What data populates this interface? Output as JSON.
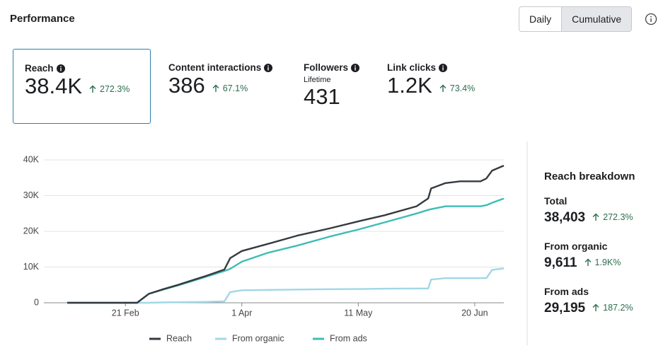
{
  "header": {
    "title": "Performance",
    "buttons": [
      "Daily",
      "Cumulative"
    ]
  },
  "metrics": [
    {
      "label": "Reach",
      "value": "38.4K",
      "change": "272.3%"
    },
    {
      "label": "Content interactions",
      "value": "386",
      "change": "67.1%"
    },
    {
      "label": "Followers",
      "sublabel": "Lifetime",
      "value": "431"
    },
    {
      "label": "Link clicks",
      "value": "1.2K",
      "change": "73.4%"
    }
  ],
  "chart_data": {
    "type": "line",
    "x": [
      "02-01",
      "02-25",
      "02-29",
      "03-05",
      "03-10",
      "03-15",
      "03-20",
      "03-26",
      "03-28",
      "04-01",
      "04-10",
      "04-20",
      "05-01",
      "05-11",
      "05-20",
      "05-31",
      "06-04",
      "06-05",
      "06-10",
      "06-15",
      "06-22",
      "06-24",
      "06-26",
      "06-30"
    ],
    "series": [
      {
        "name": "Reach",
        "color": "#343a40",
        "values": [
          0,
          0,
          2500,
          3800,
          5000,
          6300,
          7600,
          9300,
          12500,
          14500,
          16500,
          18800,
          20800,
          22800,
          24500,
          27000,
          29200,
          32000,
          33500,
          34000,
          34000,
          34800,
          37000,
          38403
        ]
      },
      {
        "name": "From organic",
        "color": "#9fd8e6",
        "values": [
          0,
          0,
          0,
          100,
          150,
          200,
          250,
          400,
          3000,
          3500,
          3600,
          3700,
          3800,
          3850,
          3950,
          4000,
          4000,
          6500,
          6900,
          6900,
          6900,
          6900,
          9200,
          9611
        ]
      },
      {
        "name": "From ads",
        "color": "#3dbdb5",
        "values": [
          0,
          0,
          2500,
          3700,
          4850,
          6100,
          7350,
          8900,
          9500,
          11500,
          14000,
          16000,
          18500,
          20500,
          22500,
          25000,
          26000,
          26200,
          27000,
          27000,
          27000,
          27300,
          28000,
          29195
        ]
      }
    ],
    "xlim": [
      "02-01",
      "06-30"
    ],
    "xticks": [
      {
        "value": "02-21",
        "label": "21 Feb"
      },
      {
        "value": "04-01",
        "label": "1 Apr"
      },
      {
        "value": "05-11",
        "label": "11 May"
      },
      {
        "value": "06-20",
        "label": "20 Jun"
      }
    ],
    "ylim": [
      0,
      40000
    ],
    "yticks": [
      0,
      {
        "value": 10000,
        "label": "10K"
      },
      {
        "value": 20000,
        "label": "20K"
      },
      {
        "value": 30000,
        "label": "30K"
      },
      {
        "value": 40000,
        "label": "40K"
      }
    ],
    "grid": true,
    "legend": "bottom"
  },
  "breakdown": {
    "title": "Reach breakdown",
    "items": [
      {
        "label": "Total",
        "value": "38,403",
        "change": "272.3%"
      },
      {
        "label": "From organic",
        "value": "9,611",
        "change": "1.9K%"
      },
      {
        "label": "From ads",
        "value": "29,195",
        "change": "187.2%"
      }
    ]
  }
}
